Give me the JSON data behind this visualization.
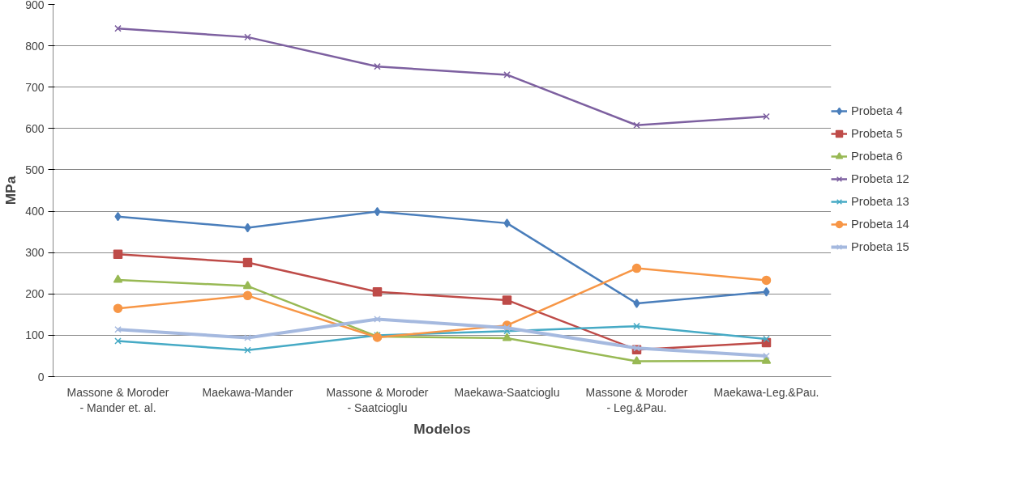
{
  "chart_data": {
    "type": "line",
    "xlabel": "Modelos",
    "ylabel": "MPa",
    "categories": [
      "Massone & Moroder\n- Mander et. al.",
      "Maekawa-Mander",
      "Massone & Moroder\n- Saatcioglu",
      "Maekawa-Saatcioglu",
      "Massone & Moroder\n- Leg.&Pau.",
      "Maekawa-Leg.&Pau."
    ],
    "ylim": [
      0,
      900
    ],
    "yticks": [
      0,
      100,
      200,
      300,
      400,
      500,
      600,
      700,
      800,
      900
    ],
    "grid": "y",
    "legend": "right",
    "series": [
      {
        "name": "Probeta 4",
        "color": "#4a7ebb",
        "marker": "diamond",
        "values": [
          387,
          360,
          399,
          371,
          177,
          205
        ]
      },
      {
        "name": "Probeta 5",
        "color": "#be4b48",
        "marker": "square",
        "values": [
          296,
          276,
          205,
          185,
          65,
          82
        ]
      },
      {
        "name": "Probeta 6",
        "color": "#98b954",
        "marker": "triangle",
        "values": [
          234,
          219,
          97,
          93,
          37,
          38
        ]
      },
      {
        "name": "Probeta 12",
        "color": "#7d60a0",
        "marker": "cross",
        "values": [
          842,
          821,
          750,
          730,
          608,
          629
        ]
      },
      {
        "name": "Probeta 13",
        "color": "#46aac5",
        "marker": "cross",
        "values": [
          86,
          64,
          100,
          110,
          122,
          91
        ]
      },
      {
        "name": "Probeta 14",
        "color": "#f79646",
        "marker": "circle",
        "values": [
          165,
          196,
          95,
          124,
          262,
          233
        ]
      },
      {
        "name": "Probeta 15",
        "color": "#a5b9df",
        "marker": "cross",
        "values": [
          114,
          94,
          139,
          118,
          69,
          50
        ]
      }
    ]
  }
}
